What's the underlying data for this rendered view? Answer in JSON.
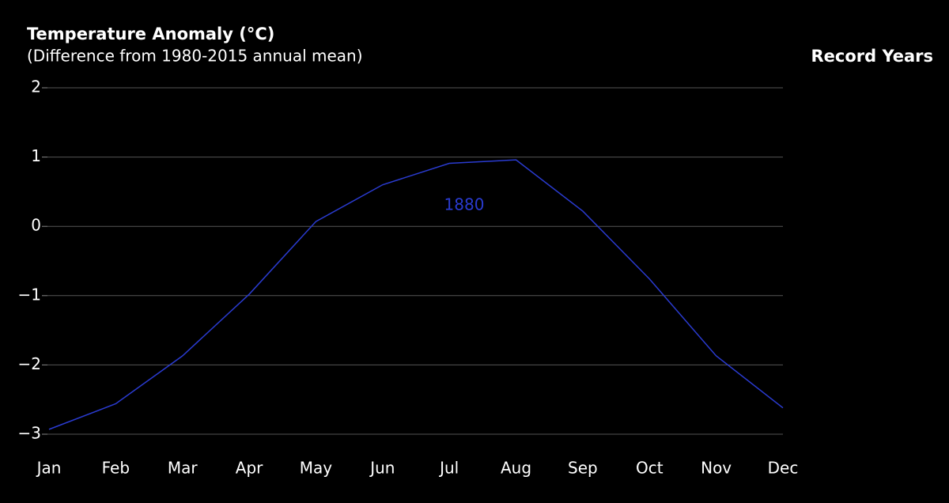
{
  "chart_data": {
    "type": "line",
    "title": "Temperature Anomaly (°C)",
    "subtitle": "(Difference from 1980-2015 annual mean)",
    "legend_title": "Record Years",
    "categories": [
      "Jan",
      "Feb",
      "Mar",
      "Apr",
      "May",
      "Jun",
      "Jul",
      "Aug",
      "Sep",
      "Oct",
      "Nov",
      "Dec"
    ],
    "series": [
      {
        "name": "1880",
        "color": "#2a3bd0",
        "values": [
          -2.93,
          -2.56,
          -1.87,
          -0.98,
          0.07,
          0.6,
          0.91,
          0.96,
          0.22,
          -0.76,
          -1.87,
          -2.62
        ]
      }
    ],
    "ylim": [
      -3,
      2
    ],
    "yticks": [
      {
        "value": -3,
        "label": "−3"
      },
      {
        "value": -2,
        "label": "−2"
      },
      {
        "value": -1,
        "label": "−1"
      },
      0,
      1,
      2
    ],
    "grid": true
  }
}
